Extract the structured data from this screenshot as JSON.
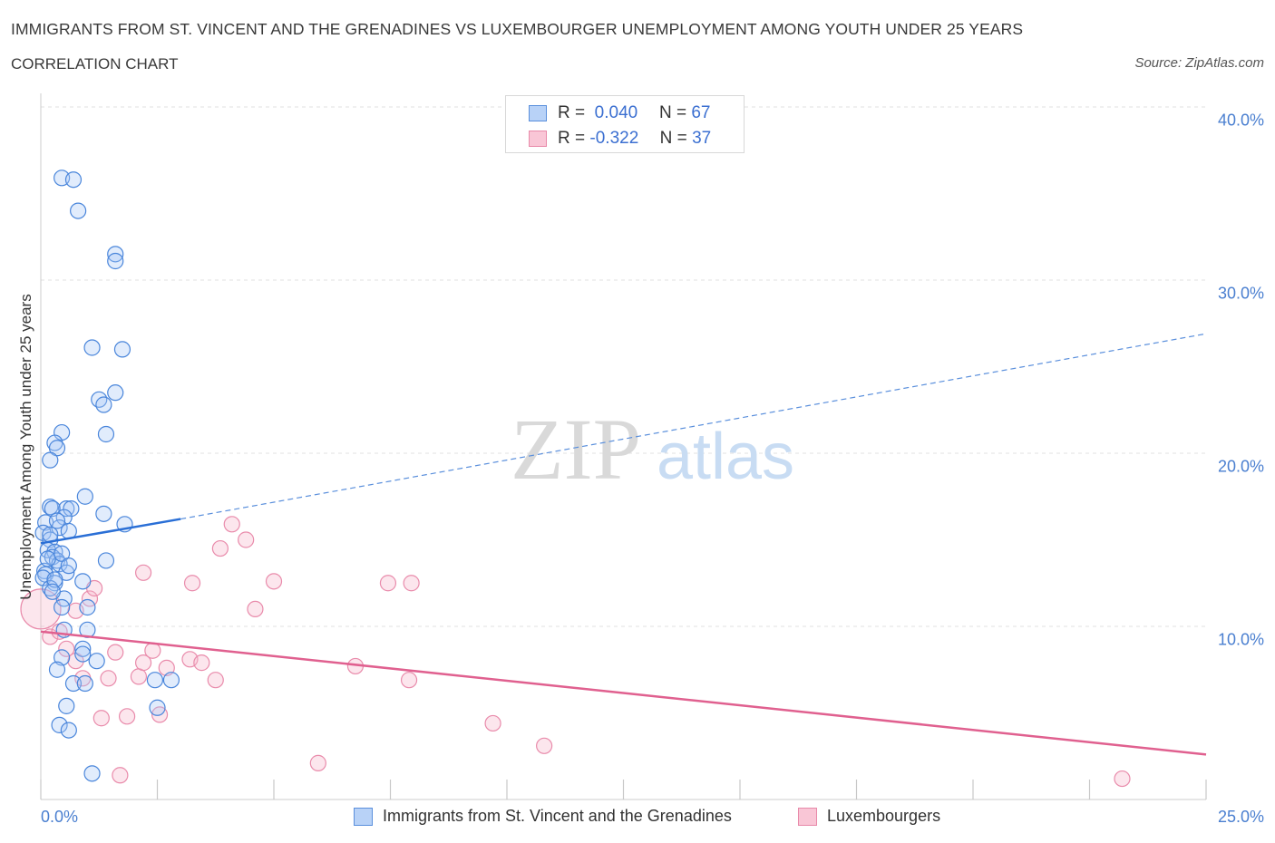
{
  "header": {
    "title": "IMMIGRANTS FROM ST. VINCENT AND THE GRENADINES VS LUXEMBOURGER UNEMPLOYMENT AMONG YOUTH UNDER 25 YEARS",
    "subtitle": "CORRELATION CHART",
    "source": "Source: ZipAtlas.com"
  },
  "legend": {
    "r_label": "R =",
    "n_label": "N =",
    "series1": {
      "r": "0.040",
      "n": "67"
    },
    "series2": {
      "r": "-0.322",
      "n": "37"
    }
  },
  "bottom_legend": {
    "series1": "Immigrants from St. Vincent and the Grenadines",
    "series2": "Luxembourgers"
  },
  "watermark": {
    "part1": "ZIP",
    "part2": "atlas"
  },
  "colors": {
    "blue": "#2a6fd6",
    "blue_fill": "#aac8f5",
    "pink": "#e0608f",
    "pink_fill": "#f6b8cc",
    "axis_text": "#4a7fd0",
    "grid": "#dcdcdc"
  },
  "chart_data": {
    "type": "scatter",
    "title": "IMMIGRANTS FROM ST. VINCENT AND THE GRENADINES VS LUXEMBOURGER UNEMPLOYMENT AMONG YOUTH UNDER 25 YEARS",
    "xlabel": "",
    "ylabel": "Unemployment Among Youth under 25 years",
    "xlim": [
      0,
      25
    ],
    "ylim": [
      0,
      40
    ],
    "x_tick_labels": [
      "0.0%",
      "25.0%"
    ],
    "y_ticks": [
      10,
      20,
      30,
      40
    ],
    "y_tick_labels": [
      "10.0%",
      "20.0%",
      "30.0%",
      "40.0%"
    ],
    "grid": true,
    "series": [
      {
        "name": "Immigrants from St. Vincent and the Grenadines",
        "color": "#2a6fd6",
        "r": 0.04,
        "n": 67,
        "points": [
          [
            0.45,
            35.9
          ],
          [
            0.7,
            35.8
          ],
          [
            0.8,
            34.0
          ],
          [
            1.6,
            31.5
          ],
          [
            1.6,
            31.1
          ],
          [
            1.1,
            26.1
          ],
          [
            1.75,
            26.0
          ],
          [
            1.6,
            23.5
          ],
          [
            1.25,
            23.1
          ],
          [
            1.35,
            22.8
          ],
          [
            1.4,
            21.1
          ],
          [
            0.45,
            21.2
          ],
          [
            0.3,
            20.6
          ],
          [
            0.35,
            20.3
          ],
          [
            0.2,
            19.6
          ],
          [
            0.95,
            17.5
          ],
          [
            0.2,
            16.9
          ],
          [
            0.25,
            16.8
          ],
          [
            0.55,
            16.8
          ],
          [
            0.65,
            16.8
          ],
          [
            0.5,
            16.3
          ],
          [
            1.35,
            16.5
          ],
          [
            0.1,
            16.0
          ],
          [
            0.4,
            15.7
          ],
          [
            0.6,
            15.5
          ],
          [
            1.8,
            15.9
          ],
          [
            0.05,
            15.4
          ],
          [
            0.2,
            15.0
          ],
          [
            0.15,
            14.4
          ],
          [
            0.3,
            14.3
          ],
          [
            0.25,
            14.0
          ],
          [
            0.35,
            13.8
          ],
          [
            0.4,
            13.6
          ],
          [
            1.4,
            13.8
          ],
          [
            0.08,
            13.2
          ],
          [
            0.1,
            13.0
          ],
          [
            0.55,
            13.1
          ],
          [
            0.05,
            12.8
          ],
          [
            0.9,
            12.6
          ],
          [
            0.3,
            12.5
          ],
          [
            0.2,
            12.2
          ],
          [
            0.5,
            11.6
          ],
          [
            0.45,
            11.1
          ],
          [
            1.0,
            11.1
          ],
          [
            1.0,
            9.8
          ],
          [
            0.5,
            9.8
          ],
          [
            0.9,
            8.7
          ],
          [
            0.9,
            8.4
          ],
          [
            0.45,
            8.2
          ],
          [
            1.2,
            8.0
          ],
          [
            0.35,
            7.5
          ],
          [
            0.7,
            6.7
          ],
          [
            0.95,
            6.7
          ],
          [
            2.45,
            6.9
          ],
          [
            2.8,
            6.9
          ],
          [
            0.55,
            5.4
          ],
          [
            2.5,
            5.3
          ],
          [
            0.4,
            4.3
          ],
          [
            0.6,
            4.0
          ],
          [
            1.1,
            1.5
          ],
          [
            0.15,
            13.9
          ],
          [
            0.45,
            14.2
          ],
          [
            0.3,
            12.7
          ],
          [
            0.2,
            15.3
          ],
          [
            0.6,
            13.5
          ],
          [
            0.35,
            16.1
          ],
          [
            0.25,
            12.0
          ]
        ],
        "trend": {
          "x": [
            0,
            3.0
          ],
          "y": [
            14.8,
            16.2
          ],
          "dashed_extension": {
            "x": [
              3.0,
              25
            ],
            "y": [
              16.2,
              26.9
            ]
          }
        }
      },
      {
        "name": "Luxembourgers",
        "color": "#e0608f",
        "r": -0.322,
        "n": 37,
        "points": [
          [
            0.0,
            11.0
          ],
          [
            0.2,
            9.4
          ],
          [
            0.4,
            9.7
          ],
          [
            0.55,
            8.7
          ],
          [
            0.75,
            10.9
          ],
          [
            1.05,
            11.6
          ],
          [
            1.15,
            12.2
          ],
          [
            1.6,
            8.5
          ],
          [
            1.45,
            7.0
          ],
          [
            0.9,
            7.0
          ],
          [
            1.3,
            4.7
          ],
          [
            1.85,
            4.8
          ],
          [
            2.1,
            7.1
          ],
          [
            2.2,
            7.9
          ],
          [
            2.2,
            13.1
          ],
          [
            2.4,
            8.6
          ],
          [
            2.55,
            4.9
          ],
          [
            2.7,
            7.6
          ],
          [
            3.25,
            12.5
          ],
          [
            3.2,
            8.1
          ],
          [
            3.45,
            7.9
          ],
          [
            3.75,
            6.9
          ],
          [
            3.85,
            14.5
          ],
          [
            4.1,
            15.9
          ],
          [
            4.4,
            15.0
          ],
          [
            4.6,
            11.0
          ],
          [
            5.0,
            12.6
          ],
          [
            5.95,
            2.1
          ],
          [
            6.75,
            7.7
          ],
          [
            7.45,
            12.5
          ],
          [
            7.95,
            12.5
          ],
          [
            7.9,
            6.9
          ],
          [
            9.7,
            4.4
          ],
          [
            10.8,
            3.1
          ],
          [
            23.2,
            1.2
          ],
          [
            1.7,
            1.4
          ],
          [
            0.75,
            8.0
          ]
        ],
        "trend": {
          "x": [
            0,
            25
          ],
          "y": [
            9.7,
            2.6
          ]
        }
      }
    ]
  }
}
